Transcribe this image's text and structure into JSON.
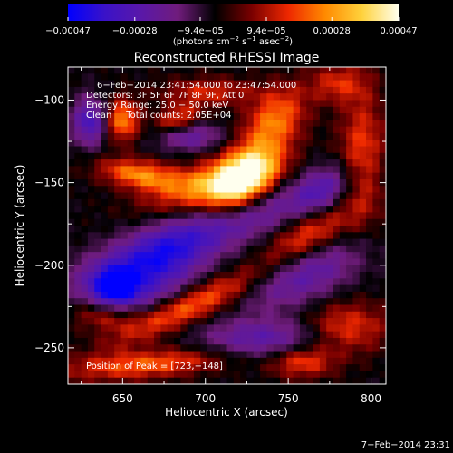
{
  "colorbar": {
    "tick_labels": [
      "−0.00047",
      "−0.00028",
      "−9.4e−05",
      "9.4e−05",
      "0.00028",
      "0.00047"
    ],
    "tick_values": [
      -0.00047,
      -0.00028,
      -9.4e-05,
      9.4e-05,
      0.00028,
      0.00047
    ],
    "range": [
      -0.00047,
      0.00047
    ],
    "unit_label_parts": [
      "(photons cm",
      "−2",
      " s",
      "−1",
      " asec",
      "−2",
      ")"
    ]
  },
  "chart_data": {
    "type": "heatmap",
    "title": "Reconstructed RHESSI Image",
    "xlabel": "Heliocentric X (arcsec)",
    "ylabel": "Heliocentric Y (arcsec)",
    "xlim": [
      617,
      809
    ],
    "ylim": [
      -272,
      -80
    ],
    "x_ticks": [
      650,
      700,
      750,
      800
    ],
    "x_tick_labels": [
      "650",
      "700",
      "750",
      "800"
    ],
    "y_ticks": [
      -100,
      -150,
      -200,
      -250
    ],
    "y_tick_labels": [
      "−100",
      "−150",
      "−200",
      "−250"
    ],
    "annotations": [
      "6−Feb−2014 23:41:54.000 to 23:47:54.000",
      "Detectors: 3F 5F 6F 7F 8F 9F, Att 0",
      "Energy Range: 25.0 − 50.0 keV",
      "Clean     Total counts: 2.05E+04"
    ],
    "peak": {
      "label": "Position of Peak = [723,−148]",
      "x": 723,
      "y": -148
    },
    "colormap_stops": [
      "#0000ff",
      "#3a12c8",
      "#5a18a8",
      "#701c7c",
      "#000000",
      "#7a0000",
      "#ee2800",
      "#ff8a00",
      "#ffd23c",
      "#ffffee"
    ],
    "sources": [
      {
        "x": 723,
        "y": -148,
        "sx": 17,
        "sy": 11,
        "angle": 42,
        "amp": 1.0
      },
      {
        "x": 700,
        "y": -152,
        "sx": 26,
        "sy": 9,
        "angle": 15,
        "amp": 0.55
      },
      {
        "x": 660,
        "y": -145,
        "sx": 17,
        "sy": 6,
        "angle": -8,
        "amp": 0.6
      },
      {
        "x": 742,
        "y": -112,
        "sx": 16,
        "sy": 11,
        "angle": 50,
        "amp": 0.55
      },
      {
        "x": 650,
        "y": -112,
        "sx": 7,
        "sy": 9,
        "angle": 0,
        "amp": 0.6
      },
      {
        "x": 683,
        "y": -112,
        "sx": 10,
        "sy": 6,
        "angle": 20,
        "amp": 0.45
      },
      {
        "x": 762,
        "y": -182,
        "sx": 20,
        "sy": 9,
        "angle": 30,
        "amp": 0.5
      },
      {
        "x": 795,
        "y": -135,
        "sx": 10,
        "sy": 28,
        "angle": 0,
        "amp": 0.45
      },
      {
        "x": 690,
        "y": -225,
        "sx": 36,
        "sy": 7,
        "angle": 25,
        "amp": 0.55
      },
      {
        "x": 665,
        "y": -260,
        "sx": 34,
        "sy": 6,
        "angle": 5,
        "amp": 0.5
      },
      {
        "x": 640,
        "y": -230,
        "sx": 14,
        "sy": 7,
        "angle": 0,
        "amp": 0.42
      },
      {
        "x": 785,
        "y": -238,
        "sx": 18,
        "sy": 11,
        "angle": 0,
        "amp": 0.42
      },
      {
        "x": 758,
        "y": -258,
        "sx": 14,
        "sy": 7,
        "angle": 0,
        "amp": 0.45
      },
      {
        "x": 702,
        "y": -95,
        "sx": 20,
        "sy": 6,
        "angle": 0,
        "amp": 0.35
      },
      {
        "x": 780,
        "y": -90,
        "sx": 12,
        "sy": 8,
        "angle": 0,
        "amp": 0.35
      },
      {
        "x": 700,
        "y": -180,
        "sx": 60,
        "sy": 10,
        "angle": 20,
        "amp": -0.55
      },
      {
        "x": 668,
        "y": -205,
        "sx": 24,
        "sy": 14,
        "angle": 30,
        "amp": -0.6
      },
      {
        "x": 645,
        "y": -214,
        "sx": 10,
        "sy": 8,
        "angle": 0,
        "amp": -0.9
      },
      {
        "x": 630,
        "y": -113,
        "sx": 7,
        "sy": 10,
        "angle": 0,
        "amp": -0.65
      },
      {
        "x": 690,
        "y": -122,
        "sx": 14,
        "sy": 6,
        "angle": 0,
        "amp": -0.45
      },
      {
        "x": 760,
        "y": -205,
        "sx": 26,
        "sy": 12,
        "angle": 25,
        "amp": -0.5
      },
      {
        "x": 735,
        "y": -245,
        "sx": 26,
        "sy": 8,
        "angle": 0,
        "amp": -0.5
      },
      {
        "x": 770,
        "y": -155,
        "sx": 12,
        "sy": 8,
        "angle": 40,
        "amp": -0.35
      }
    ]
  },
  "footer": {
    "timestamp": "7−Feb−2014 23:31"
  }
}
